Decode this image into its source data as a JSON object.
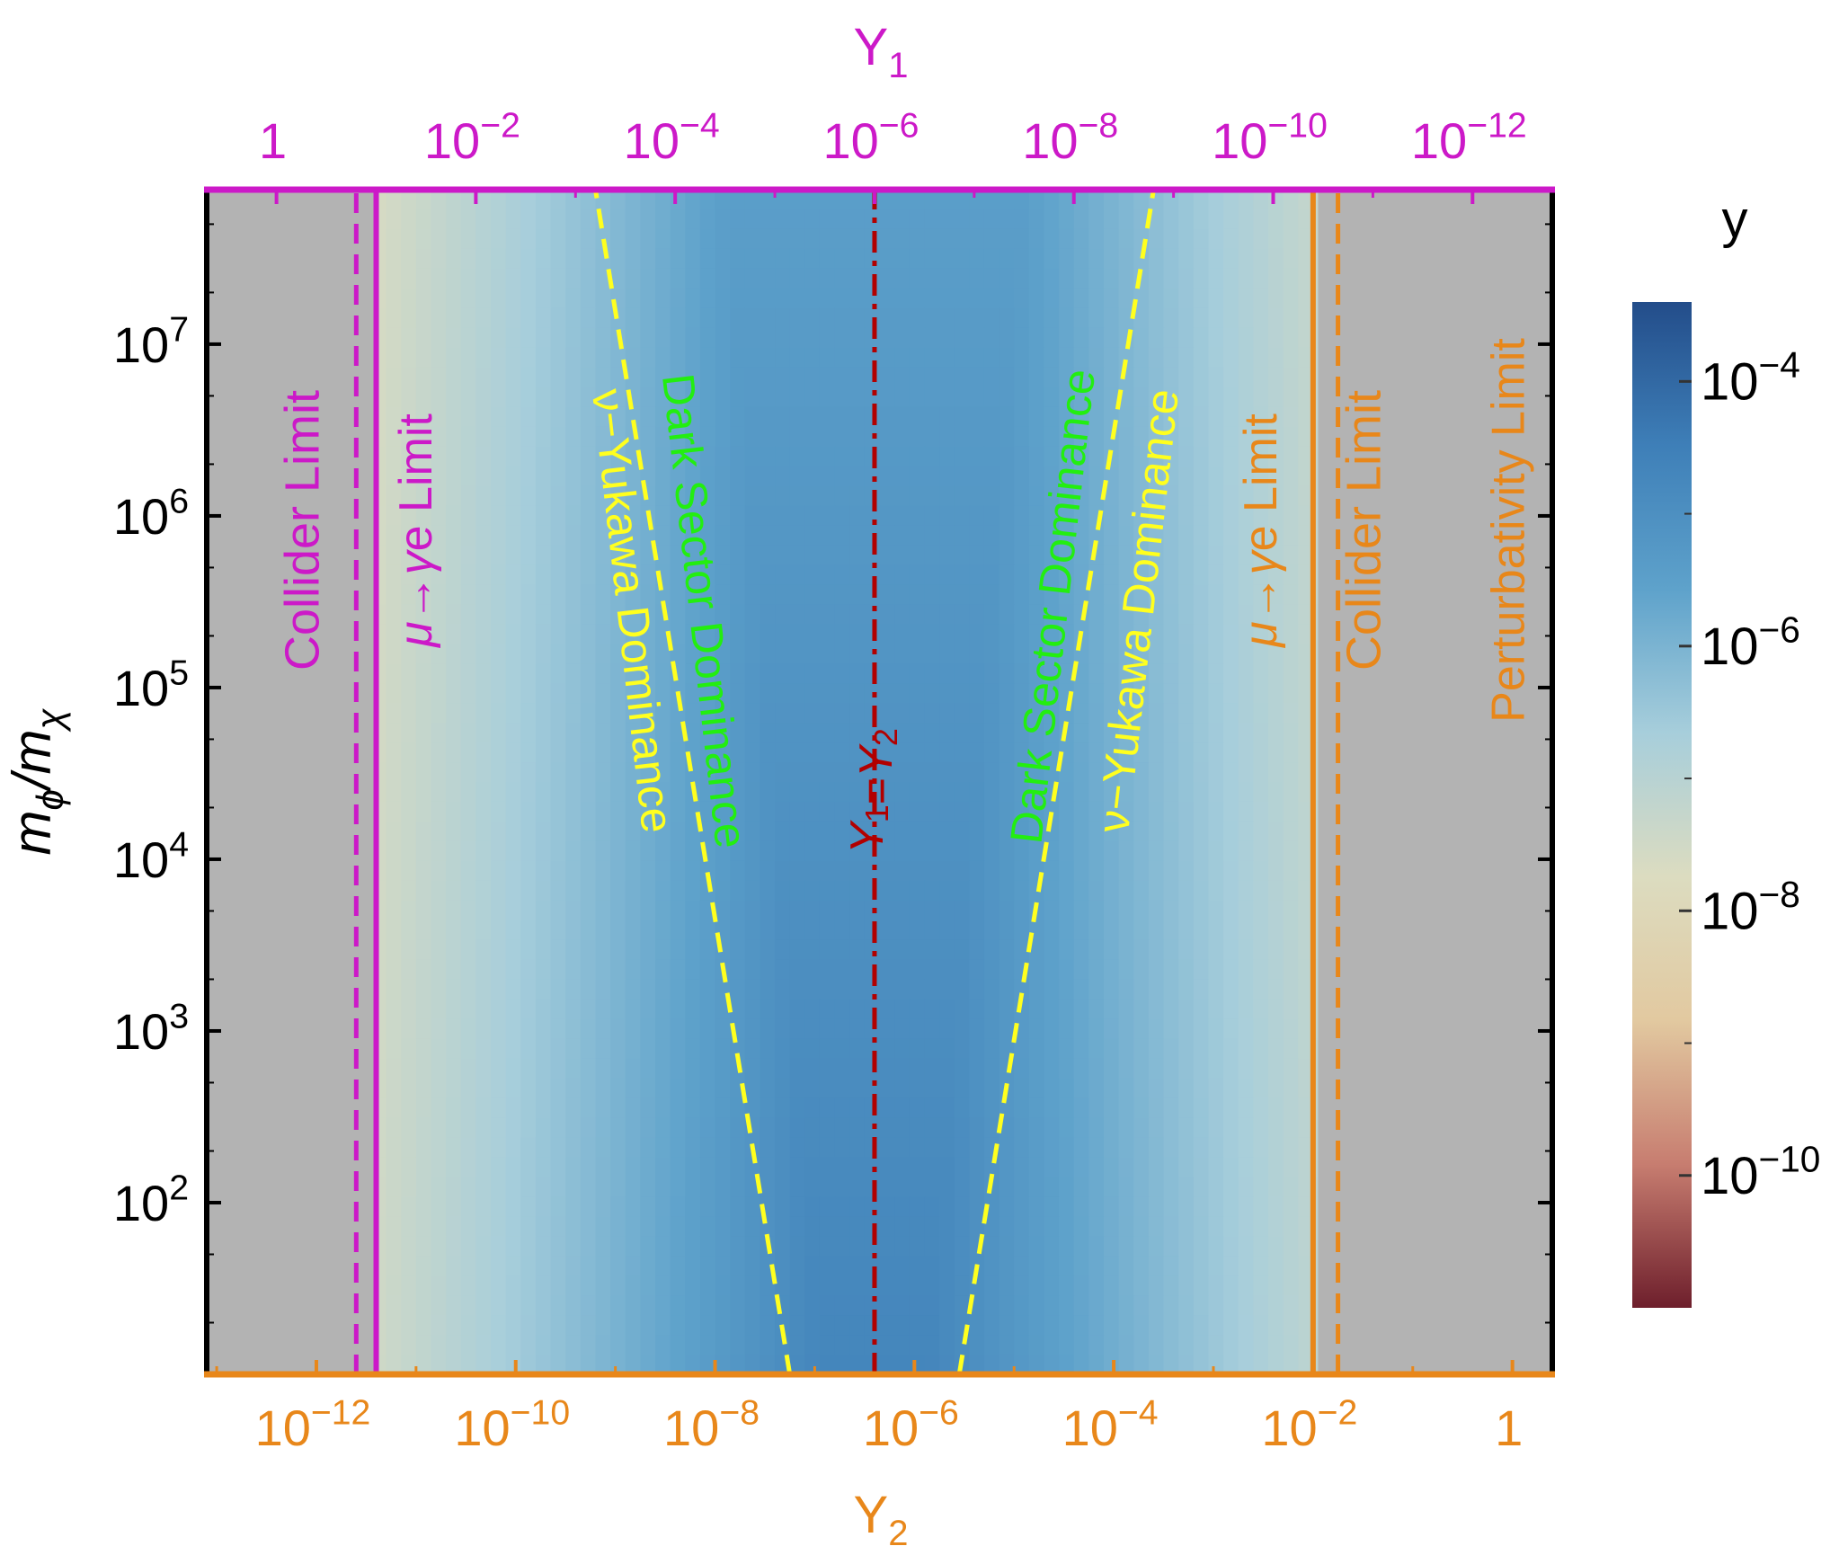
{
  "chart_data": {
    "type": "heatmap",
    "colors": {
      "magenta": "#cc19c8",
      "orange": "#e8871a",
      "yellow": "#ffff1f",
      "green": "#23ee10",
      "dashdot_red": "#b20000",
      "gray": "#b3b3b3"
    },
    "top_axis": {
      "label_base": "Y",
      "label_sub": "1",
      "ticks": [
        {
          "base": "1",
          "exp": "",
          "x_log10_Y2": -12.4
        },
        {
          "base": "10",
          "exp": "−2",
          "x_log10_Y2": -10.4
        },
        {
          "base": "10",
          "exp": "−4",
          "x_log10_Y2": -8.4
        },
        {
          "base": "10",
          "exp": "−6",
          "x_log10_Y2": -6.4
        },
        {
          "base": "10",
          "exp": "−8",
          "x_log10_Y2": -4.4
        },
        {
          "base": "10",
          "exp": "−10",
          "x_log10_Y2": -2.4
        },
        {
          "base": "10",
          "exp": "−12",
          "x_log10_Y2": -0.4
        }
      ]
    },
    "bottom_axis": {
      "label_base": "Y",
      "label_sub": "2",
      "range_log10": [
        -13.1,
        0.4
      ],
      "ticks": [
        {
          "base": "10",
          "exp": "−12",
          "value": -12
        },
        {
          "base": "10",
          "exp": "−10",
          "value": -10
        },
        {
          "base": "10",
          "exp": "−8",
          "value": -8
        },
        {
          "base": "10",
          "exp": "−6",
          "value": -6
        },
        {
          "base": "10",
          "exp": "−4",
          "value": -4
        },
        {
          "base": "10",
          "exp": "−2",
          "value": -2
        },
        {
          "base": "1",
          "exp": "",
          "value": 0
        }
      ]
    },
    "y_axis": {
      "label_main": "m",
      "label_sub1": "ϕ",
      "label_mid": "/m",
      "label_sub2": "χ",
      "scale": "log",
      "range_log10": [
        1.0,
        7.9
      ],
      "ticks": [
        {
          "base": "10",
          "exp": "2",
          "value": 2
        },
        {
          "base": "10",
          "exp": "3",
          "value": 3
        },
        {
          "base": "10",
          "exp": "4",
          "value": 4
        },
        {
          "base": "10",
          "exp": "5",
          "value": 5
        },
        {
          "base": "10",
          "exp": "6",
          "value": 6
        },
        {
          "base": "10",
          "exp": "7",
          "value": 7
        }
      ]
    },
    "colorbar": {
      "title": "y",
      "range_log10": [
        -11.0,
        -3.4
      ],
      "ticks": [
        {
          "base": "10",
          "exp": "−4",
          "value": -4
        },
        {
          "base": "10",
          "exp": "−6",
          "value": -6
        },
        {
          "base": "10",
          "exp": "−8",
          "value": -8
        },
        {
          "base": "10",
          "exp": "−10",
          "value": -10
        }
      ],
      "colormap": [
        "#6e1f2c",
        "#c77d70",
        "#e2c9a0",
        "#dcdcc0",
        "#a7cedb",
        "#5ea2cb",
        "#3e7fb8",
        "#234d8a"
      ]
    },
    "regions": [
      {
        "name": "gray-left",
        "x_from": -13.1,
        "x_to": -11.4
      },
      {
        "name": "gray-right",
        "x_from": -1.95,
        "x_to": 0.4
      }
    ],
    "lines": [
      {
        "name": "collider-left",
        "style": "dashed",
        "color": "magenta",
        "x": -11.6
      },
      {
        "name": "mu-egamma-left",
        "style": "solid",
        "color": "magenta",
        "x": -11.4
      },
      {
        "name": "mu-egamma-right",
        "style": "solid",
        "color": "orange",
        "x": -2.0
      },
      {
        "name": "collider-right",
        "style": "dashed",
        "color": "orange",
        "x": -1.75
      },
      {
        "name": "equal",
        "style": "dashdot",
        "color": "dashdot_red",
        "x": -6.4
      },
      {
        "name": "dominance-left",
        "style": "dashed",
        "color": "yellow",
        "x_at_ymin": -7.25,
        "x_at_ymax": -9.2
      },
      {
        "name": "dominance-right",
        "style": "dashed",
        "color": "yellow",
        "x_at_ymin": -5.55,
        "x_at_ymax": -3.6
      }
    ],
    "annotations": [
      {
        "key": "collider_left",
        "text": "Collider Limit",
        "color": "magenta"
      },
      {
        "key": "mu_left",
        "text": "μ→γe Limit",
        "color": "magenta"
      },
      {
        "key": "dark_left",
        "text": "Dark Sector Dominance",
        "color": "green"
      },
      {
        "key": "nu_left",
        "text": "ν−Yukawa Dominance",
        "color": "yellow"
      },
      {
        "key": "equal",
        "text": "Y1=Y2",
        "color": "dashdot_red"
      },
      {
        "key": "dark_right",
        "text": "Dark Sector Dominance",
        "color": "green"
      },
      {
        "key": "nu_right",
        "text": "ν−Yukawa Dominance",
        "color": "yellow"
      },
      {
        "key": "mu_right",
        "text": "μ→γe Limit",
        "color": "orange"
      },
      {
        "key": "collider_right",
        "text": "Collider Limit",
        "color": "orange"
      },
      {
        "key": "perturbativity",
        "text": "Perturbativity Limit",
        "color": "orange"
      }
    ]
  }
}
